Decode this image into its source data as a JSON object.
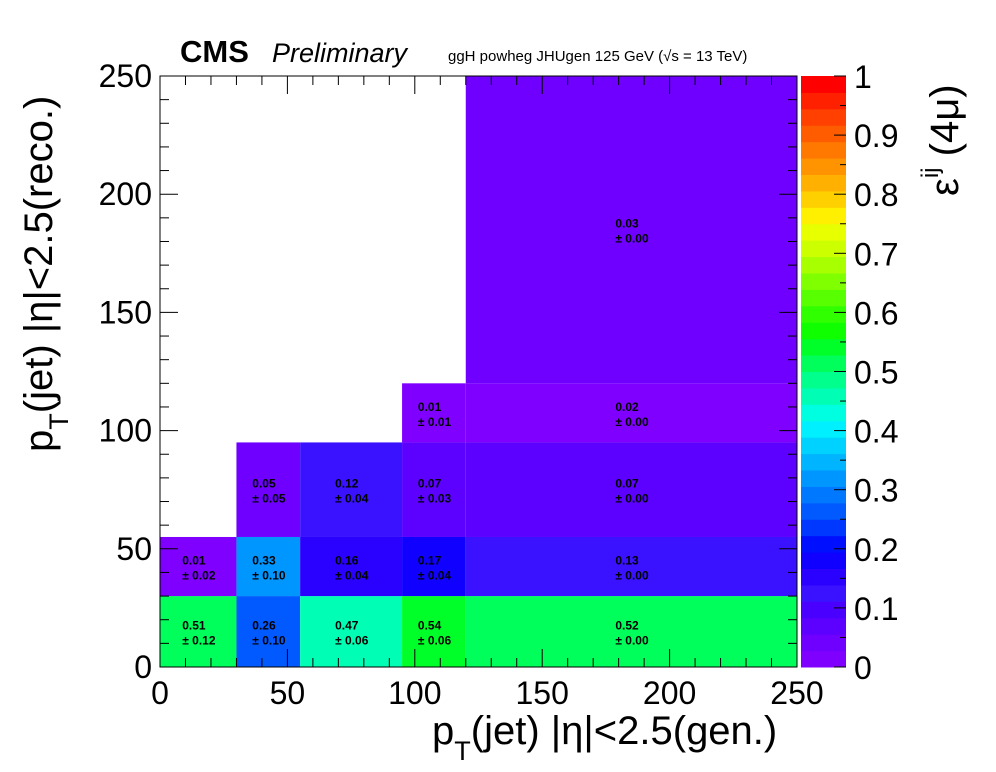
{
  "header": {
    "cms": "CMS",
    "preliminary": "Preliminary",
    "process": "ggH powheg JHUgen 125 GeV (√s = 13 TeV)"
  },
  "axes": {
    "x_main": "p",
    "x_sub": "T",
    "x_rest": "(jet) |η|<2.5(gen.)",
    "y_main": "p",
    "y_sub": "T",
    "y_rest": "(jet) |η|<2.5(reco.)",
    "z_main": "ε",
    "z_sup": "ij",
    "z_rest": " (4μ)"
  },
  "chart_data": {
    "type": "heatmap",
    "x_edges": [
      0,
      30,
      55,
      95,
      120,
      250
    ],
    "y_edges": [
      0,
      30,
      55,
      95,
      120,
      250
    ],
    "xlim": [
      0,
      250
    ],
    "ylim": [
      0,
      250
    ],
    "zlim": [
      0,
      1
    ],
    "x_ticks": [
      "0",
      "50",
      "100",
      "150",
      "200",
      "250"
    ],
    "y_ticks": [
      "0",
      "50",
      "100",
      "150",
      "200",
      "250"
    ],
    "z_ticks": [
      "0",
      "0.1",
      "0.2",
      "0.3",
      "0.4",
      "0.5",
      "0.6",
      "0.7",
      "0.8",
      "0.9",
      "1"
    ],
    "cells": [
      {
        "xbin": 0,
        "ybin": 0,
        "value": 0.51,
        "error": 0.12,
        "label": "0.51",
        "err_label": "± 0.12"
      },
      {
        "xbin": 1,
        "ybin": 0,
        "value": 0.26,
        "error": 0.1,
        "label": "0.26",
        "err_label": "± 0.10"
      },
      {
        "xbin": 2,
        "ybin": 0,
        "value": 0.47,
        "error": 0.06,
        "label": "0.47",
        "err_label": "± 0.06"
      },
      {
        "xbin": 3,
        "ybin": 0,
        "value": 0.54,
        "error": 0.06,
        "label": "0.54",
        "err_label": "± 0.06"
      },
      {
        "xbin": 4,
        "ybin": 0,
        "value": 0.52,
        "error": 0.0,
        "label": "0.52",
        "err_label": "± 0.00"
      },
      {
        "xbin": 0,
        "ybin": 1,
        "value": 0.01,
        "error": 0.02,
        "label": "0.01",
        "err_label": "± 0.02"
      },
      {
        "xbin": 1,
        "ybin": 1,
        "value": 0.33,
        "error": 0.1,
        "label": "0.33",
        "err_label": "± 0.10"
      },
      {
        "xbin": 2,
        "ybin": 1,
        "value": 0.16,
        "error": 0.04,
        "label": "0.16",
        "err_label": "± 0.04"
      },
      {
        "xbin": 3,
        "ybin": 1,
        "value": 0.17,
        "error": 0.04,
        "label": "0.17",
        "err_label": "± 0.04"
      },
      {
        "xbin": 4,
        "ybin": 1,
        "value": 0.13,
        "error": 0.0,
        "label": "0.13",
        "err_label": "± 0.00"
      },
      {
        "xbin": 1,
        "ybin": 2,
        "value": 0.05,
        "error": 0.05,
        "label": "0.05",
        "err_label": "± 0.05"
      },
      {
        "xbin": 2,
        "ybin": 2,
        "value": 0.12,
        "error": 0.04,
        "label": "0.12",
        "err_label": "± 0.04"
      },
      {
        "xbin": 3,
        "ybin": 2,
        "value": 0.07,
        "error": 0.03,
        "label": "0.07",
        "err_label": "± 0.03"
      },
      {
        "xbin": 4,
        "ybin": 2,
        "value": 0.07,
        "error": 0.0,
        "label": "0.07",
        "err_label": "± 0.00"
      },
      {
        "xbin": 3,
        "ybin": 3,
        "value": 0.01,
        "error": 0.01,
        "label": "0.01",
        "err_label": "± 0.01"
      },
      {
        "xbin": 4,
        "ybin": 3,
        "value": 0.02,
        "error": 0.0,
        "label": "0.02",
        "err_label": "± 0.00"
      },
      {
        "xbin": 4,
        "ybin": 4,
        "value": 0.03,
        "error": 0.0,
        "label": "0.03",
        "err_label": "± 0.00"
      }
    ],
    "palette": [
      "#7f00ff",
      "#6f00ff",
      "#5c00ff",
      "#4a00ff",
      "#3a12ff",
      "#2a00ff",
      "#1000ff",
      "#0010ff",
      "#0038ff",
      "#005aff",
      "#0078ff",
      "#0096ff",
      "#00b4ff",
      "#00d2ff",
      "#00f0ff",
      "#00ffe0",
      "#00ffb4",
      "#00ff8c",
      "#00ff5a",
      "#00ff28",
      "#10ff00",
      "#30ff00",
      "#58ff00",
      "#80ff00",
      "#a8ff00",
      "#ccff00",
      "#e8ff00",
      "#fff000",
      "#ffd000",
      "#ffb000",
      "#ff9400",
      "#ff7800",
      "#ff5c00",
      "#ff4000",
      "#ff2000",
      "#ff0000"
    ]
  }
}
